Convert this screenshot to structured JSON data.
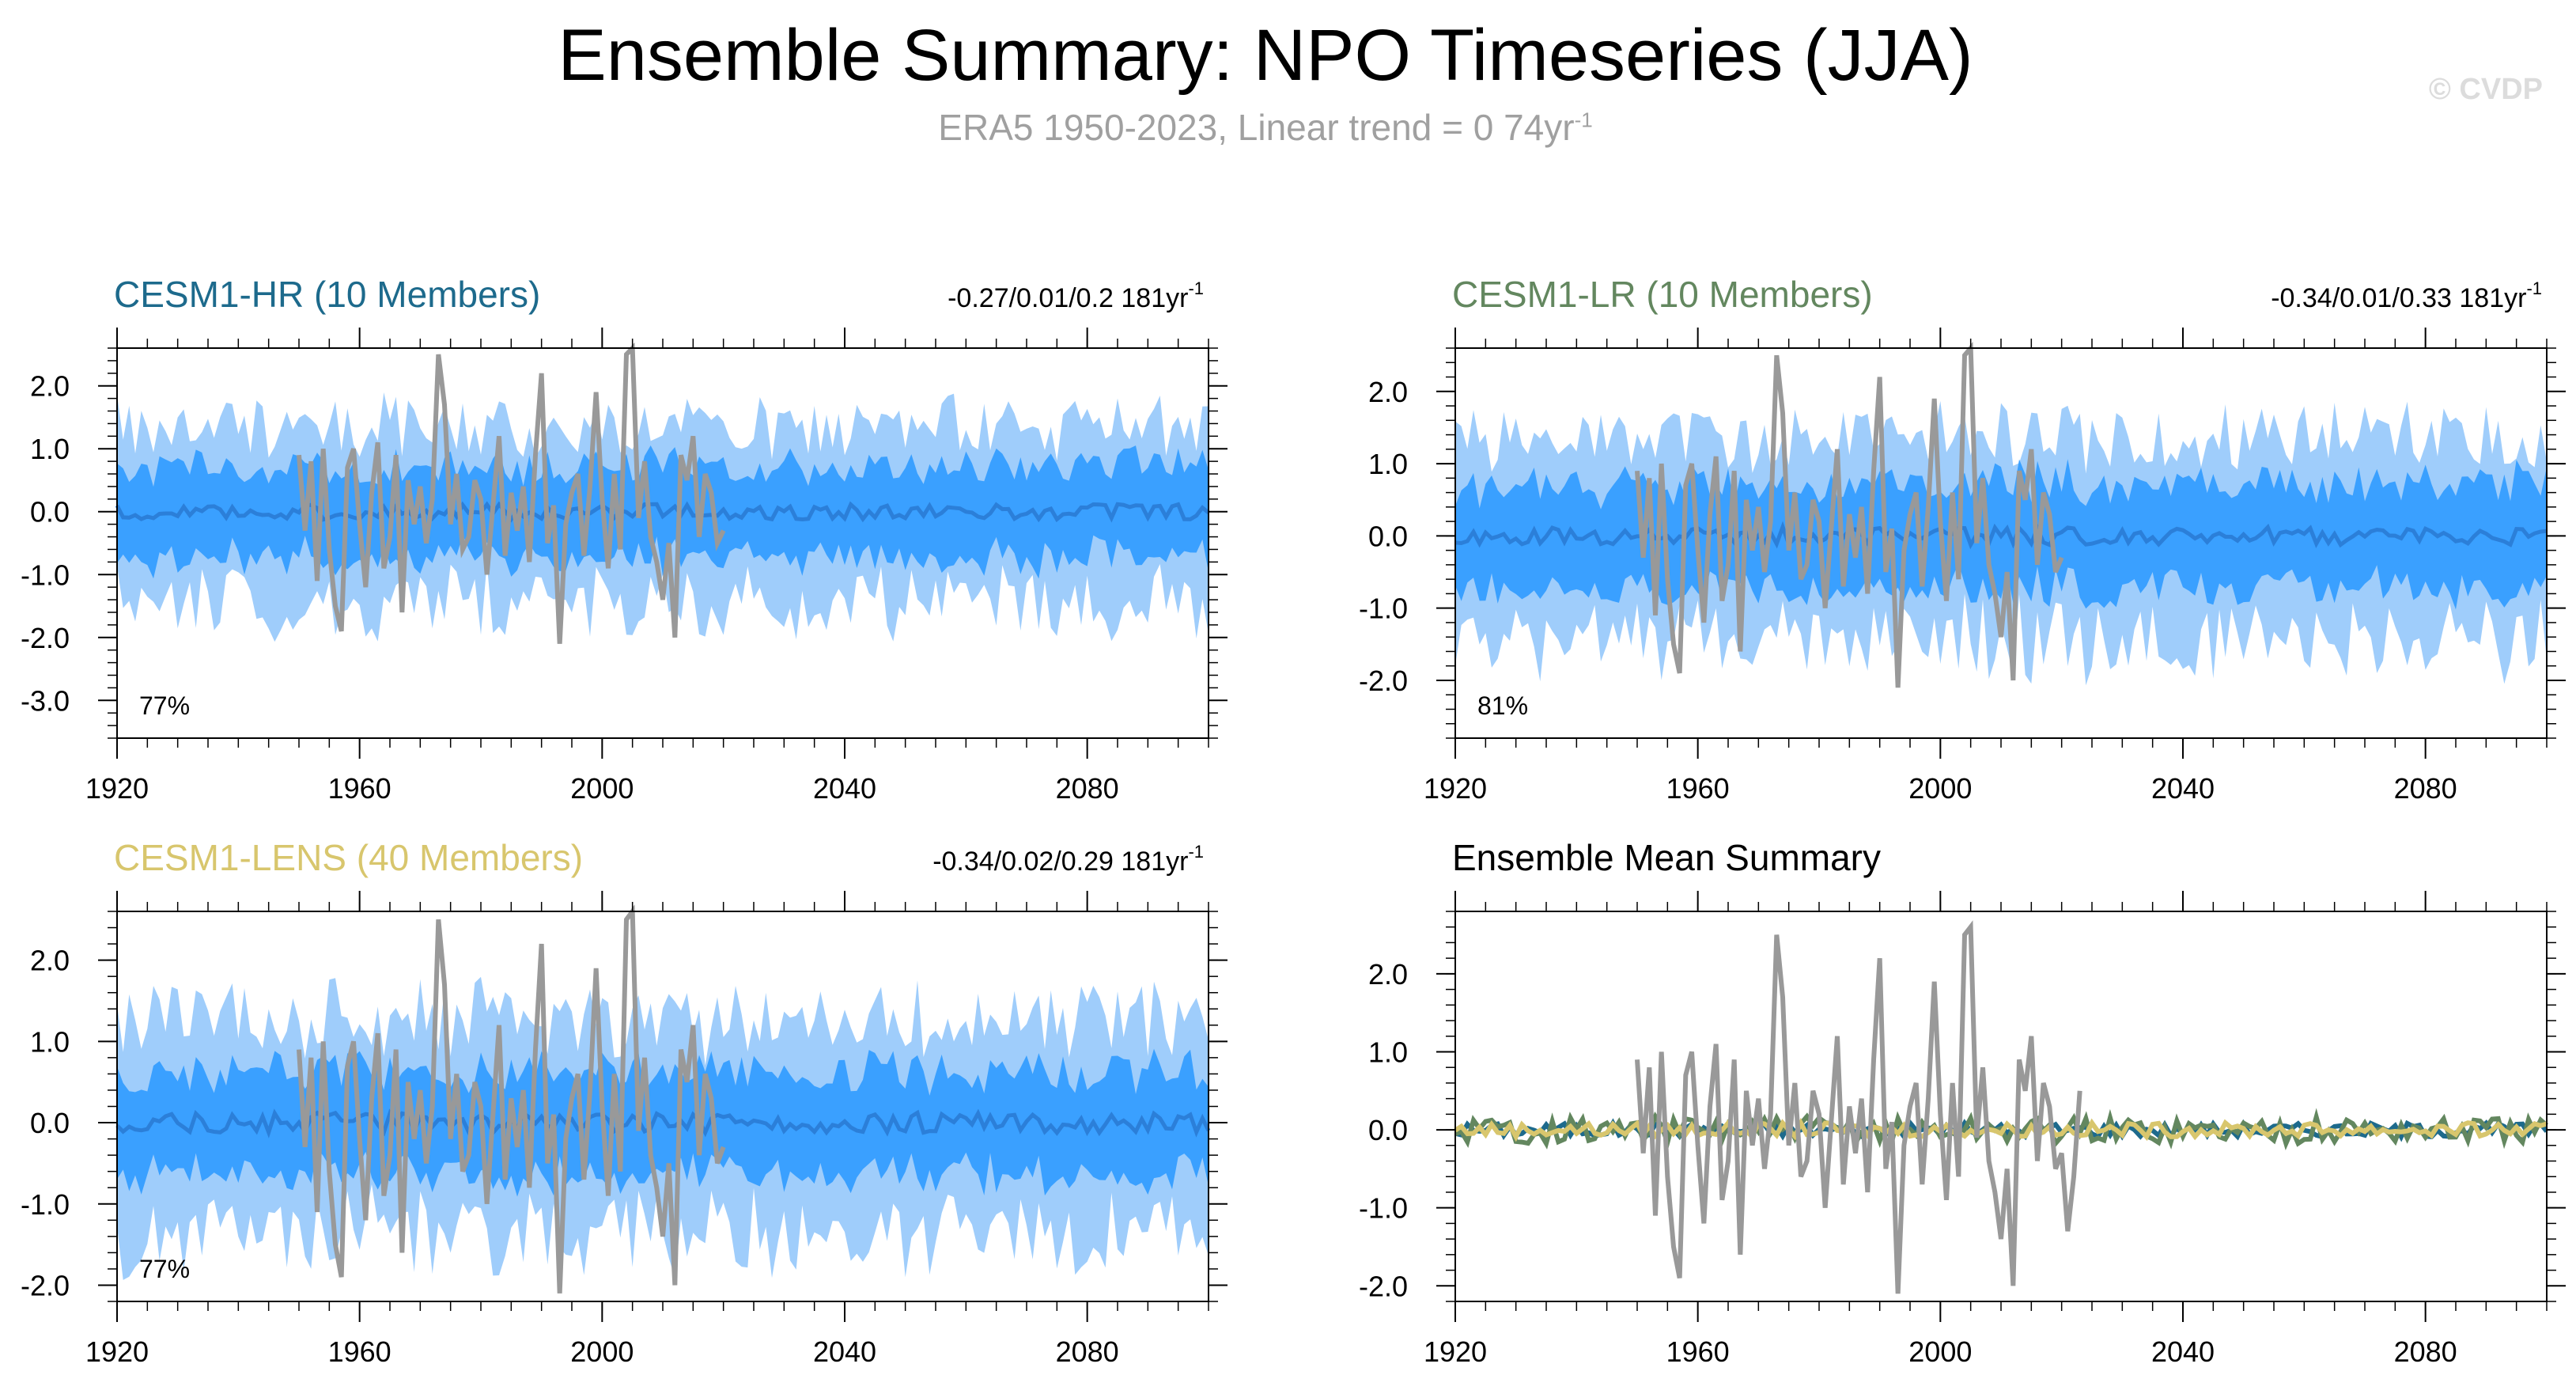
{
  "title": "Ensemble Summary: NPO Timeseries (JJA)",
  "subtitle": "ERA5 1950-2023, Linear trend = 0 74yr",
  "subtitle_sup": "-1",
  "watermark": "© CVDP",
  "colors": {
    "hr": "#1d6a8c",
    "lr": "#63875f",
    "lens": "#d8c66d",
    "obs": "#999999",
    "band_outer": "#9fcdfb",
    "band_inner": "#3aa0ff",
    "ens_mean": "#2b7fd9"
  },
  "chart_data": [
    {
      "id": "hr",
      "type": "area",
      "title": "CESM1-HR (10 Members)",
      "stat": "-0.27/0.01/0.2 181yr",
      "stat_sup": "-1",
      "percent_label": "77%",
      "xlim": [
        1920,
        2100
      ],
      "ylim": [
        -3.6,
        2.6
      ],
      "xticks": [
        "1920",
        "1960",
        "2000",
        "2040",
        "2080"
      ],
      "yticks": [
        "2.0",
        "1.0",
        "0.0",
        "-1.0",
        "-2.0",
        "-3.0"
      ],
      "x_start": 1920,
      "x_end": 2100,
      "outer_amp": 1.6,
      "inner_amp": 0.8,
      "obs_years": [
        1950,
        2020
      ]
    },
    {
      "id": "lr",
      "type": "area",
      "title": "CESM1-LR (10 Members)",
      "stat": "-0.34/0.01/0.33 181yr",
      "stat_sup": "-1",
      "percent_label": "81%",
      "xlim": [
        1920,
        2100
      ],
      "ylim": [
        -2.8,
        2.6
      ],
      "xticks": [
        "1920",
        "1960",
        "2000",
        "2040",
        "2080"
      ],
      "yticks": [
        "2.0",
        "1.0",
        "0.0",
        "-1.0",
        "-2.0"
      ],
      "x_start": 1920,
      "x_end": 2100,
      "outer_amp": 1.6,
      "inner_amp": 0.8,
      "obs_years": [
        1950,
        2020
      ]
    },
    {
      "id": "lens",
      "type": "area",
      "title": "CESM1-LENS (40 Members)",
      "stat": "-0.34/0.02/0.29 181yr",
      "stat_sup": "-1",
      "percent_label": "77%",
      "xlim": [
        1920,
        2100
      ],
      "ylim": [
        -2.2,
        2.6
      ],
      "xticks": [
        "1920",
        "1960",
        "2000",
        "2040",
        "2080"
      ],
      "yticks": [
        "2.0",
        "1.0",
        "0.0",
        "-1.0",
        "-2.0"
      ],
      "x_start": 1920,
      "x_end": 2100,
      "outer_amp": 1.5,
      "inner_amp": 0.7,
      "obs_years": [
        1950,
        2020
      ]
    },
    {
      "id": "mean",
      "type": "line",
      "title": "Ensemble Mean Summary",
      "stat": "",
      "stat_sup": "",
      "percent_label": "",
      "xlim": [
        1920,
        2100
      ],
      "ylim": [
        -2.2,
        2.8
      ],
      "xticks": [
        "1920",
        "1960",
        "2000",
        "2040",
        "2080"
      ],
      "yticks": [
        "2.0",
        "1.0",
        "0.0",
        "-1.0",
        "-2.0"
      ],
      "x_start": 1920,
      "x_end": 2100,
      "obs_years": [
        1950,
        2023
      ]
    }
  ],
  "obs_series": {
    "name": "ERA5",
    "x_start": 1950,
    "values": [
      0.9,
      -0.3,
      0.8,
      -1.1,
      1.0,
      -0.6,
      -1.5,
      -1.9,
      0.7,
      1.0,
      -0.2,
      -1.2,
      0.3,
      1.1,
      -0.9,
      -0.4,
      0.9,
      -1.6,
      0.5,
      -0.2,
      0.4,
      -0.5,
      0.2,
      2.5,
      1.7,
      -0.2,
      0.6,
      -0.6,
      -0.4,
      0.5,
      0.2,
      -1.0,
      0.1,
      1.2,
      -0.7,
      0.3,
      -0.3,
      0.4,
      -0.8,
      0.9,
      2.2,
      -0.5,
      0.1,
      -2.1,
      -0.2,
      0.3,
      0.6,
      -0.7,
      0.4,
      1.9,
      0.2,
      -0.9,
      0.6,
      -0.6,
      2.5,
      2.6,
      -0.1,
      0.8,
      -0.4,
      -0.8,
      -1.4,
      -0.5,
      -2.0,
      0.9,
      0.5,
      1.2,
      -0.4,
      0.6,
      0.3,
      -0.5,
      -0.3,
      -1.3,
      -0.6,
      0.5
    ]
  }
}
